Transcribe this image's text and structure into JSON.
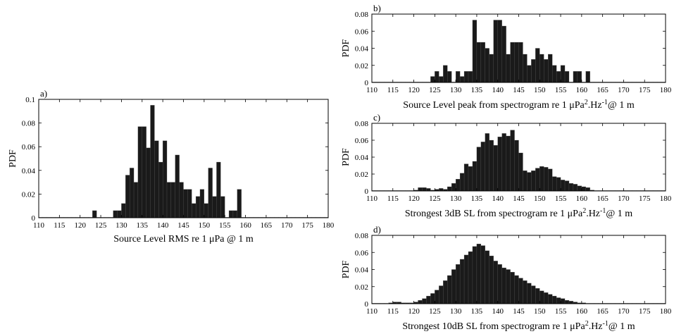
{
  "chart_data": [
    {
      "type": "bar",
      "panel_label": "a)",
      "xlabel": "Source Level RMS re 1 μPa @ 1 m",
      "ylabel": "PDF",
      "xlim": [
        110,
        180
      ],
      "ylim": [
        0,
        0.1
      ],
      "xticks": [
        110,
        115,
        120,
        125,
        130,
        135,
        140,
        145,
        150,
        155,
        160,
        165,
        170,
        175,
        180
      ],
      "yticks": [
        0,
        0.02,
        0.04,
        0.06,
        0.08,
        0.1
      ],
      "ytick_labels": [
        "0",
        "0.02",
        "0.04",
        "0.06",
        "0.08",
        "0.1"
      ],
      "bin_width": 1,
      "bin_start": 110,
      "values": [
        0,
        0,
        0,
        0,
        0,
        0,
        0,
        0,
        0,
        0,
        0,
        0,
        0,
        0.006,
        0,
        0,
        0,
        0,
        0.006,
        0.006,
        0.012,
        0.036,
        0.042,
        0.03,
        0.077,
        0.077,
        0.059,
        0.095,
        0.065,
        0.047,
        0.065,
        0.03,
        0.03,
        0.053,
        0.03,
        0.024,
        0.024,
        0.012,
        0.018,
        0.024,
        0.012,
        0.042,
        0.018,
        0.047,
        0.018,
        0,
        0.006,
        0.006,
        0.024,
        0,
        0,
        0,
        0,
        0,
        0,
        0,
        0,
        0,
        0,
        0,
        0,
        0,
        0,
        0,
        0,
        0,
        0,
        0,
        0,
        0
      ],
      "fill": "#1a1a1a"
    },
    {
      "type": "bar",
      "panel_label": "b)",
      "xlabel": "Source Level peak from spectrogram re 1 μPa².Hz⁻¹@ 1 m",
      "ylabel": "PDF",
      "xlim": [
        110,
        180
      ],
      "ylim": [
        0,
        0.08
      ],
      "xticks": [
        110,
        115,
        120,
        125,
        130,
        135,
        140,
        145,
        150,
        155,
        160,
        165,
        170,
        175,
        180
      ],
      "yticks": [
        0,
        0.02,
        0.04,
        0.06,
        0.08
      ],
      "ytick_labels": [
        "0",
        "0.02",
        "0.04",
        "0.06",
        "0.08"
      ],
      "bin_width": 1,
      "bin_start": 110,
      "values": [
        0,
        0,
        0,
        0,
        0,
        0,
        0,
        0,
        0,
        0,
        0,
        0,
        0,
        0,
        0.007,
        0.013,
        0.007,
        0.02,
        0.013,
        0,
        0.013,
        0.007,
        0.013,
        0.013,
        0.073,
        0.047,
        0.047,
        0.04,
        0.033,
        0.073,
        0.073,
        0.066,
        0.033,
        0.047,
        0.047,
        0.047,
        0.033,
        0.02,
        0.027,
        0.04,
        0.033,
        0.027,
        0.033,
        0.02,
        0.013,
        0.02,
        0.013,
        0,
        0.013,
        0.013,
        0,
        0.013,
        0,
        0,
        0,
        0,
        0,
        0,
        0,
        0,
        0,
        0,
        0,
        0,
        0,
        0,
        0,
        0,
        0,
        0
      ],
      "fill": "#1a1a1a"
    },
    {
      "type": "bar",
      "panel_label": "c)",
      "xlabel": "Strongest 3dB SL from spectrogram re 1 μPa².Hz⁻¹@ 1 m",
      "ylabel": "PDF",
      "xlim": [
        110,
        180
      ],
      "ylim": [
        0,
        0.08
      ],
      "xticks": [
        110,
        115,
        120,
        125,
        130,
        135,
        140,
        145,
        150,
        155,
        160,
        165,
        170,
        175,
        180
      ],
      "yticks": [
        0,
        0.02,
        0.04,
        0.06,
        0.08
      ],
      "ytick_labels": [
        "0",
        "0.02",
        "0.04",
        "0.06",
        "0.08"
      ],
      "bin_width": 1,
      "bin_start": 110,
      "values": [
        0,
        0,
        0,
        0,
        0,
        0,
        0,
        0,
        0,
        0,
        0.001,
        0.004,
        0.004,
        0.003,
        0.001,
        0.002,
        0.003,
        0.002,
        0.005,
        0.009,
        0.014,
        0.021,
        0.032,
        0.029,
        0.035,
        0.052,
        0.058,
        0.068,
        0.06,
        0.054,
        0.064,
        0.068,
        0.065,
        0.072,
        0.06,
        0.045,
        0.024,
        0.022,
        0.024,
        0.027,
        0.029,
        0.028,
        0.026,
        0.017,
        0.016,
        0.013,
        0.012,
        0.009,
        0.008,
        0.006,
        0.005,
        0.004,
        0.001,
        0,
        0,
        0,
        0,
        0,
        0,
        0,
        0,
        0,
        0,
        0,
        0,
        0,
        0,
        0,
        0,
        0
      ],
      "fill": "#1a1a1a"
    },
    {
      "type": "bar",
      "panel_label": "d)",
      "xlabel": "Strongest 10dB SL from spectrogram re 1 μPa².Hz⁻¹@ 1 m",
      "ylabel": "PDF",
      "xlim": [
        110,
        180
      ],
      "ylim": [
        0,
        0.08
      ],
      "xticks": [
        110,
        115,
        120,
        125,
        130,
        135,
        140,
        145,
        150,
        155,
        160,
        165,
        170,
        175,
        180
      ],
      "yticks": [
        0,
        0.02,
        0.04,
        0.06,
        0.08
      ],
      "ytick_labels": [
        "0",
        "0.02",
        "0.04",
        "0.06",
        "0.08"
      ],
      "bin_width": 1,
      "bin_start": 110,
      "values": [
        0,
        0,
        0,
        0,
        0.001,
        0.002,
        0.002,
        0.001,
        0.001,
        0.001,
        0.002,
        0.004,
        0.006,
        0.009,
        0.012,
        0.016,
        0.021,
        0.027,
        0.033,
        0.04,
        0.046,
        0.052,
        0.057,
        0.061,
        0.067,
        0.07,
        0.068,
        0.062,
        0.056,
        0.05,
        0.046,
        0.042,
        0.04,
        0.037,
        0.033,
        0.03,
        0.027,
        0.024,
        0.021,
        0.018,
        0.015,
        0.013,
        0.011,
        0.009,
        0.007,
        0.006,
        0.004,
        0.003,
        0.002,
        0.001,
        0.001,
        0,
        0,
        0,
        0,
        0,
        0,
        0,
        0,
        0,
        0,
        0,
        0,
        0,
        0,
        0,
        0,
        0,
        0,
        0
      ],
      "fill": "#1a1a1a"
    }
  ]
}
